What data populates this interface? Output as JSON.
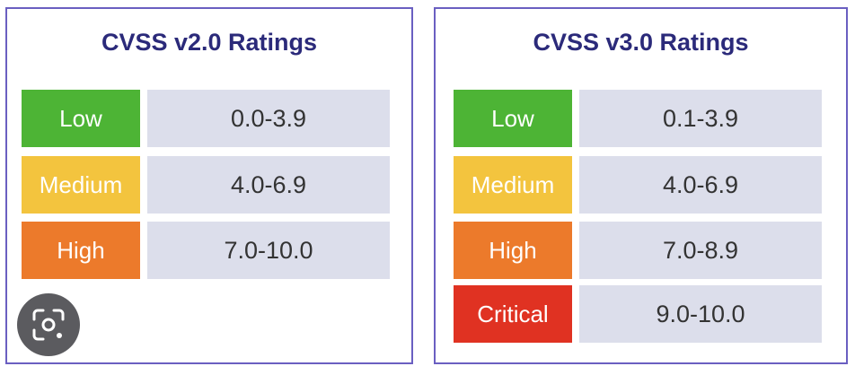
{
  "colors": {
    "low": "#4db435",
    "medium": "#f3c43e",
    "high": "#ec7a2b",
    "critical": "#e03222",
    "range_bg": "#dcdeeb",
    "border": "#6a5fc1",
    "title": "#2b2a7a"
  },
  "v2": {
    "title": "CVSS v2.0 Ratings",
    "rows": [
      {
        "rating": "Low",
        "range": "0.0-3.9",
        "color": "#4db435"
      },
      {
        "rating": "Medium",
        "range": "4.0-6.9",
        "color": "#f3c43e"
      },
      {
        "rating": "High",
        "range": "7.0-10.0",
        "color": "#ec7a2b"
      }
    ]
  },
  "v3": {
    "title": "CVSS v3.0 Ratings",
    "rows": [
      {
        "rating": "Low",
        "range": "0.1-3.9",
        "color": "#4db435"
      },
      {
        "rating": "Medium",
        "range": "4.0-6.9",
        "color": "#f3c43e"
      },
      {
        "rating": "High",
        "range": "7.0-8.9",
        "color": "#ec7a2b"
      },
      {
        "rating": "Critical",
        "range": "9.0-10.0",
        "color": "#e03222"
      }
    ]
  },
  "overlay": {
    "icon": "lens-search-icon"
  }
}
